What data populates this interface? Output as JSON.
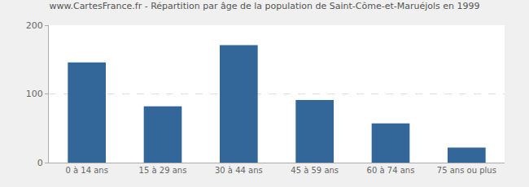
{
  "chart_data": {
    "type": "bar",
    "title": "www.CartesFrance.fr - Répartition par âge de la population de Saint-Côme-et-Maruéjols en 1999",
    "categories": [
      "0 à 14 ans",
      "15 à 29 ans",
      "30 à 44 ans",
      "45 à 59 ans",
      "60 à 74 ans",
      "75 ans ou plus"
    ],
    "values": [
      146,
      82,
      171,
      91,
      57,
      22
    ],
    "color": "#336699",
    "ylim": [
      0,
      200
    ],
    "yticks": [
      0,
      100,
      200
    ],
    "grid": true
  }
}
